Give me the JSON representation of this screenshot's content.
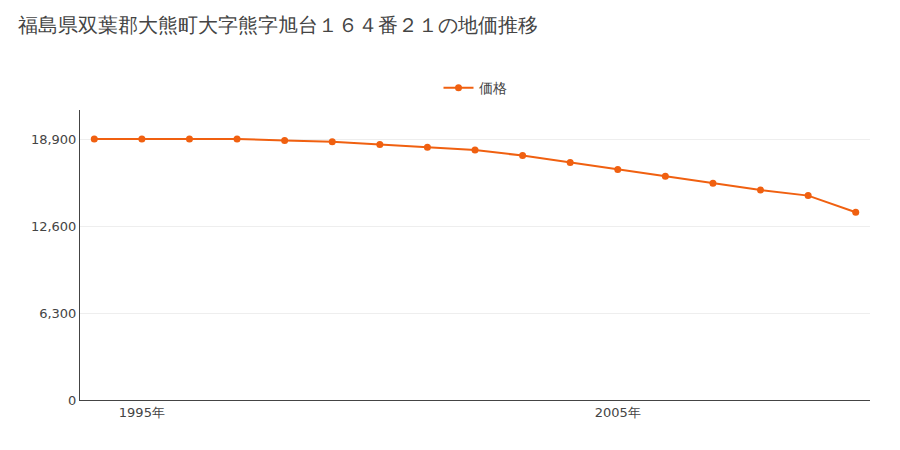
{
  "chart_data": {
    "type": "line",
    "title": "福島県双葉郡大熊町大字熊字旭台１６４番２１の地価推移",
    "x": [
      1994,
      1995,
      1996,
      1997,
      1998,
      1999,
      2000,
      2001,
      2002,
      2003,
      2004,
      2005,
      2006,
      2007,
      2008,
      2009,
      2010
    ],
    "series": [
      {
        "name": "価格",
        "color": "#f06010",
        "marker": "circle",
        "values": [
          18900,
          18900,
          18900,
          18900,
          18800,
          18700,
          18500,
          18300,
          18100,
          17700,
          17200,
          16700,
          16200,
          15700,
          15200,
          14800,
          13600
        ]
      }
    ],
    "xlim": [
      1993.7,
      2010.3
    ],
    "xticks": [
      {
        "value": 1995,
        "label": "1995年"
      },
      {
        "value": 2005,
        "label": "2005年"
      }
    ],
    "ylim": [
      0,
      21000
    ],
    "yticks": [
      0,
      {
        "value": 6300,
        "label": "6,300"
      },
      {
        "value": 12600,
        "label": "12,600"
      },
      {
        "value": 18900,
        "label": "18,900"
      }
    ],
    "grid": "y",
    "legend": "top"
  }
}
